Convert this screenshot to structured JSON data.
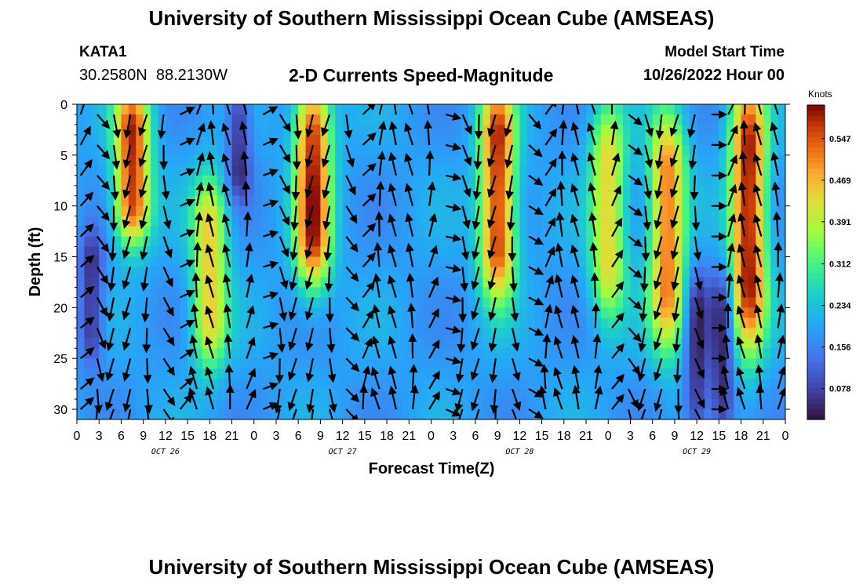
{
  "header": {
    "title": "University of Southern Mississippi Ocean Cube (AMSEAS)",
    "station": "KATA1",
    "lat": "30.2580N",
    "lon": "88.2130W",
    "subtitle": "2-D Currents Speed-Magnitude",
    "model_start_label": "Model Start Time",
    "model_start_value": "10/26/2022 Hour 00"
  },
  "footer": {
    "title": "University of Southern Mississippi Ocean Cube (AMSEAS)"
  },
  "chart_data": {
    "type": "heatmap",
    "title": "2-D Currents Speed-Magnitude",
    "xlabel": "Forecast Time(Z)",
    "ylabel": "Depth (ft)",
    "x_tick_labels": [
      "0",
      "3",
      "6",
      "9",
      "12",
      "15",
      "18",
      "21",
      "0",
      "3",
      "6",
      "9",
      "12",
      "15",
      "18",
      "21",
      "0",
      "3",
      "6",
      "9",
      "12",
      "15",
      "18",
      "21",
      "0",
      "3",
      "6",
      "9",
      "12",
      "15",
      "18",
      "21",
      "0"
    ],
    "date_labels": [
      {
        "label": "OCT 26",
        "hour": 12
      },
      {
        "label": "OCT 27",
        "hour": 36
      },
      {
        "label": "OCT 28",
        "hour": 60
      },
      {
        "label": "OCT 29",
        "hour": 84
      }
    ],
    "xlim_hours": [
      0,
      96
    ],
    "ylim_ft": [
      0,
      31
    ],
    "y_ticks": [
      0,
      5,
      10,
      15,
      20,
      25,
      30
    ],
    "colorbar": {
      "units": "Knots",
      "ticks": [
        "0.078",
        "0.156",
        "0.234",
        "0.312",
        "0.391",
        "0.469",
        "0.547"
      ],
      "range": [
        0.02,
        0.61
      ]
    },
    "strong_bands": [
      {
        "center_hour": 7.5,
        "from_ft": 0,
        "to_ft": 12,
        "peak_knots": 0.58
      },
      {
        "center_hour": 18,
        "from_ft": 9,
        "to_ft": 24,
        "peak_knots": 0.45
      },
      {
        "center_hour": 32,
        "from_ft": 0,
        "to_ft": 16,
        "peak_knots": 0.59
      },
      {
        "center_hour": 57,
        "from_ft": 0,
        "to_ft": 17,
        "peak_knots": 0.58
      },
      {
        "center_hour": 72,
        "from_ft": 2,
        "to_ft": 19,
        "peak_knots": 0.44
      },
      {
        "center_hour": 80,
        "from_ft": 3,
        "to_ft": 22,
        "peak_knots": 0.52
      },
      {
        "center_hour": 91,
        "from_ft": 0,
        "to_ft": 22,
        "peak_knots": 0.6
      }
    ],
    "weak_bands": [
      {
        "center_hour": 22,
        "from_ft": 0,
        "to_ft": 8,
        "min_knots": 0.05
      },
      {
        "center_hour": 2,
        "from_ft": 14,
        "to_ft": 24,
        "min_knots": 0.05
      },
      {
        "center_hour": 84,
        "from_ft": 18,
        "to_ft": 31,
        "min_knots": 0.05
      },
      {
        "center_hour": 87.5,
        "from_ft": 18,
        "to_ft": 31,
        "min_knots": 0.04
      }
    ]
  }
}
